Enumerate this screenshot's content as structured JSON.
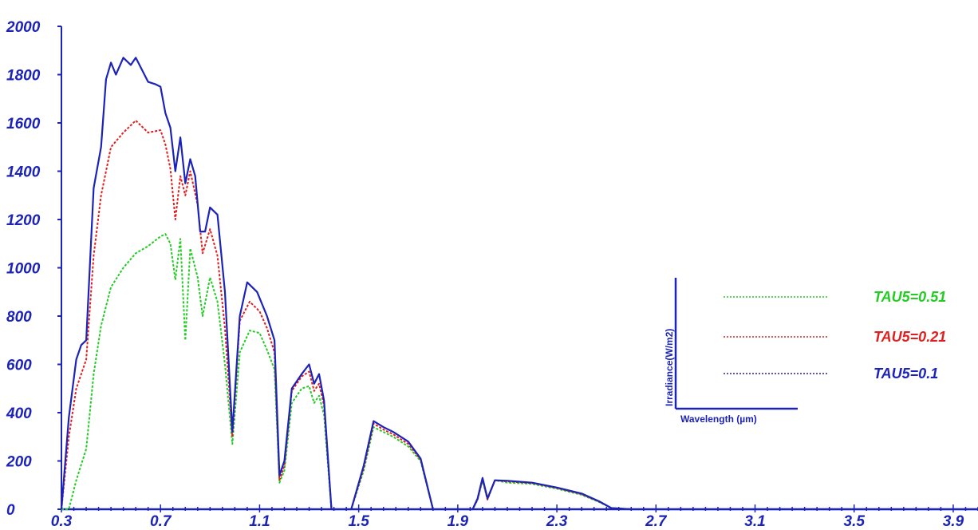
{
  "chart_data": {
    "type": "line",
    "title": "",
    "xlabel": "",
    "ylabel": "",
    "xlim": [
      0.3,
      4.0
    ],
    "ylim": [
      0,
      2000
    ],
    "x_ticks": [
      "0.3",
      "0.7",
      "1.1",
      "1.5",
      "1.9",
      "2.3",
      "2.7",
      "3.1",
      "3.5",
      "3.9"
    ],
    "y_ticks": [
      "2000",
      "1800",
      "1600",
      "1400",
      "1200",
      "1000",
      "800",
      "600",
      "400",
      "200",
      "0"
    ],
    "grid": false,
    "legend_position": "right",
    "inset_axes": {
      "xlabel": "Wavelength (µm)",
      "ylabel": "Irradiance(W/m2)"
    },
    "series": [
      {
        "name": "TAU5=0.51",
        "color": "#22cc22",
        "style": "dotted",
        "points": [
          [
            0.3,
            0
          ],
          [
            0.33,
            0
          ],
          [
            0.36,
            120
          ],
          [
            0.4,
            250
          ],
          [
            0.43,
            560
          ],
          [
            0.46,
            760
          ],
          [
            0.5,
            920
          ],
          [
            0.55,
            1000
          ],
          [
            0.6,
            1060
          ],
          [
            0.65,
            1090
          ],
          [
            0.7,
            1130
          ],
          [
            0.72,
            1140
          ],
          [
            0.74,
            1100
          ],
          [
            0.76,
            950
          ],
          [
            0.78,
            1120
          ],
          [
            0.8,
            700
          ],
          [
            0.82,
            1080
          ],
          [
            0.85,
            960
          ],
          [
            0.87,
            800
          ],
          [
            0.9,
            960
          ],
          [
            0.93,
            860
          ],
          [
            0.96,
            600
          ],
          [
            0.99,
            270
          ],
          [
            1.02,
            650
          ],
          [
            1.06,
            740
          ],
          [
            1.1,
            730
          ],
          [
            1.13,
            660
          ],
          [
            1.16,
            580
          ],
          [
            1.18,
            110
          ],
          [
            1.2,
            160
          ],
          [
            1.23,
            440
          ],
          [
            1.27,
            500
          ],
          [
            1.3,
            510
          ],
          [
            1.32,
            440
          ],
          [
            1.34,
            470
          ],
          [
            1.36,
            390
          ],
          [
            1.39,
            0
          ],
          [
            1.42,
            0
          ],
          [
            1.47,
            0
          ],
          [
            1.52,
            160
          ],
          [
            1.56,
            340
          ],
          [
            1.6,
            320
          ],
          [
            1.64,
            300
          ],
          [
            1.7,
            260
          ],
          [
            1.75,
            200
          ],
          [
            1.8,
            0
          ],
          [
            1.85,
            0
          ],
          [
            1.9,
            0
          ],
          [
            1.96,
            0
          ],
          [
            1.98,
            40
          ],
          [
            2.0,
            120
          ],
          [
            2.02,
            40
          ],
          [
            2.05,
            120
          ],
          [
            2.1,
            110
          ],
          [
            2.2,
            105
          ],
          [
            2.3,
            85
          ],
          [
            2.4,
            60
          ],
          [
            2.47,
            30
          ],
          [
            2.52,
            5
          ],
          [
            2.6,
            0
          ],
          [
            3.0,
            0
          ],
          [
            4.0,
            0
          ]
        ]
      },
      {
        "name": "TAU5=0.21",
        "color": "#e02020",
        "style": "dotted",
        "points": [
          [
            0.3,
            0
          ],
          [
            0.33,
            300
          ],
          [
            0.36,
            500
          ],
          [
            0.4,
            620
          ],
          [
            0.43,
            1050
          ],
          [
            0.46,
            1300
          ],
          [
            0.5,
            1500
          ],
          [
            0.55,
            1560
          ],
          [
            0.6,
            1610
          ],
          [
            0.65,
            1560
          ],
          [
            0.7,
            1570
          ],
          [
            0.72,
            1510
          ],
          [
            0.74,
            1410
          ],
          [
            0.76,
            1200
          ],
          [
            0.78,
            1380
          ],
          [
            0.8,
            1300
          ],
          [
            0.82,
            1400
          ],
          [
            0.85,
            1260
          ],
          [
            0.87,
            1060
          ],
          [
            0.9,
            1160
          ],
          [
            0.93,
            1050
          ],
          [
            0.96,
            750
          ],
          [
            0.99,
            300
          ],
          [
            1.02,
            780
          ],
          [
            1.06,
            860
          ],
          [
            1.1,
            820
          ],
          [
            1.13,
            750
          ],
          [
            1.16,
            650
          ],
          [
            1.18,
            120
          ],
          [
            1.2,
            180
          ],
          [
            1.23,
            490
          ],
          [
            1.27,
            550
          ],
          [
            1.3,
            570
          ],
          [
            1.32,
            490
          ],
          [
            1.34,
            520
          ],
          [
            1.36,
            430
          ],
          [
            1.39,
            0
          ],
          [
            1.42,
            0
          ],
          [
            1.47,
            0
          ],
          [
            1.52,
            170
          ],
          [
            1.56,
            355
          ],
          [
            1.6,
            330
          ],
          [
            1.64,
            310
          ],
          [
            1.7,
            270
          ],
          [
            1.75,
            205
          ],
          [
            1.8,
            0
          ],
          [
            1.85,
            0
          ],
          [
            1.9,
            0
          ],
          [
            1.96,
            0
          ],
          [
            1.98,
            40
          ],
          [
            2.0,
            125
          ],
          [
            2.02,
            40
          ],
          [
            2.05,
            120
          ],
          [
            2.1,
            115
          ],
          [
            2.2,
            108
          ],
          [
            2.3,
            88
          ],
          [
            2.4,
            62
          ],
          [
            2.47,
            32
          ],
          [
            2.52,
            5
          ],
          [
            2.6,
            0
          ],
          [
            3.0,
            0
          ],
          [
            4.0,
            0
          ]
        ]
      },
      {
        "name": "TAU5=0.1",
        "color": "#1c23b8",
        "style": "solid",
        "points": [
          [
            0.3,
            0
          ],
          [
            0.33,
            380
          ],
          [
            0.36,
            620
          ],
          [
            0.38,
            680
          ],
          [
            0.4,
            700
          ],
          [
            0.43,
            1330
          ],
          [
            0.46,
            1500
          ],
          [
            0.48,
            1780
          ],
          [
            0.5,
            1850
          ],
          [
            0.52,
            1800
          ],
          [
            0.55,
            1870
          ],
          [
            0.58,
            1840
          ],
          [
            0.6,
            1870
          ],
          [
            0.65,
            1770
          ],
          [
            0.68,
            1760
          ],
          [
            0.7,
            1750
          ],
          [
            0.72,
            1640
          ],
          [
            0.74,
            1580
          ],
          [
            0.76,
            1400
          ],
          [
            0.78,
            1540
          ],
          [
            0.8,
            1350
          ],
          [
            0.82,
            1450
          ],
          [
            0.84,
            1380
          ],
          [
            0.86,
            1150
          ],
          [
            0.88,
            1150
          ],
          [
            0.9,
            1250
          ],
          [
            0.93,
            1220
          ],
          [
            0.96,
            900
          ],
          [
            0.99,
            320
          ],
          [
            1.02,
            800
          ],
          [
            1.05,
            940
          ],
          [
            1.09,
            900
          ],
          [
            1.13,
            800
          ],
          [
            1.16,
            700
          ],
          [
            1.18,
            140
          ],
          [
            1.2,
            200
          ],
          [
            1.23,
            500
          ],
          [
            1.27,
            560
          ],
          [
            1.3,
            600
          ],
          [
            1.32,
            520
          ],
          [
            1.34,
            560
          ],
          [
            1.36,
            450
          ],
          [
            1.39,
            0
          ],
          [
            1.42,
            0
          ],
          [
            1.47,
            0
          ],
          [
            1.52,
            180
          ],
          [
            1.56,
            365
          ],
          [
            1.6,
            340
          ],
          [
            1.64,
            320
          ],
          [
            1.7,
            280
          ],
          [
            1.75,
            210
          ],
          [
            1.8,
            0
          ],
          [
            1.85,
            0
          ],
          [
            1.9,
            0
          ],
          [
            1.96,
            0
          ],
          [
            1.98,
            45
          ],
          [
            2.0,
            130
          ],
          [
            2.02,
            45
          ],
          [
            2.05,
            120
          ],
          [
            2.1,
            118
          ],
          [
            2.2,
            110
          ],
          [
            2.3,
            90
          ],
          [
            2.4,
            65
          ],
          [
            2.47,
            33
          ],
          [
            2.52,
            5
          ],
          [
            2.6,
            0
          ],
          [
            3.0,
            0
          ],
          [
            4.0,
            0
          ]
        ]
      }
    ]
  }
}
